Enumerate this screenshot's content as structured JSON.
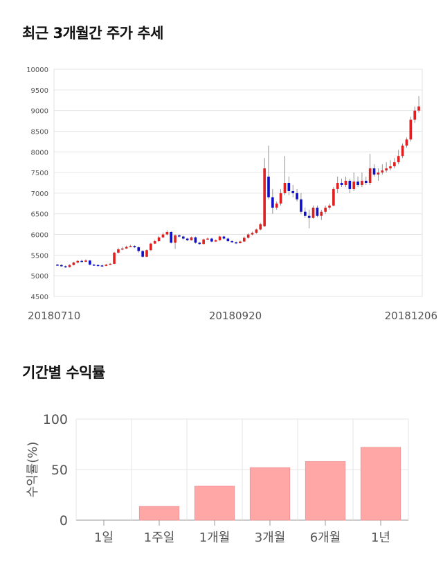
{
  "sections": {
    "price_title": "최근 3개월간 주가 추세",
    "return_title": "기간별 수익률"
  },
  "chart_data": [
    {
      "type": "candlestick",
      "title": "최근 3개월간 주가 추세",
      "ylim": [
        4500,
        10000
      ],
      "yticks": [
        4500,
        5000,
        5500,
        6000,
        6500,
        7000,
        7500,
        8000,
        8500,
        9000,
        9500,
        10000
      ],
      "xtick_labels": [
        "20180710",
        "20180920",
        "20181206"
      ],
      "colors": {
        "up": "#e02020",
        "down": "#1010c8",
        "grid": "#e6e6e6"
      },
      "candles": [
        [
          5270,
          5260,
          5290,
          5240
        ],
        [
          5260,
          5230,
          5280,
          5220
        ],
        [
          5230,
          5210,
          5250,
          5190
        ],
        [
          5210,
          5260,
          5280,
          5200
        ],
        [
          5260,
          5320,
          5340,
          5250
        ],
        [
          5320,
          5360,
          5380,
          5300
        ],
        [
          5360,
          5340,
          5390,
          5320
        ],
        [
          5340,
          5370,
          5400,
          5330
        ],
        [
          5370,
          5270,
          5380,
          5250
        ],
        [
          5270,
          5260,
          5290,
          5240
        ],
        [
          5260,
          5250,
          5280,
          5230
        ],
        [
          5250,
          5240,
          5270,
          5220
        ],
        [
          5240,
          5270,
          5290,
          5230
        ],
        [
          5270,
          5290,
          5310,
          5260
        ],
        [
          5290,
          5560,
          5580,
          5280
        ],
        [
          5560,
          5640,
          5680,
          5540
        ],
        [
          5640,
          5660,
          5700,
          5620
        ],
        [
          5660,
          5700,
          5730,
          5650
        ],
        [
          5700,
          5720,
          5750,
          5690
        ],
        [
          5720,
          5690,
          5740,
          5670
        ],
        [
          5690,
          5600,
          5710,
          5560
        ],
        [
          5600,
          5460,
          5620,
          5440
        ],
        [
          5460,
          5620,
          5640,
          5450
        ],
        [
          5620,
          5780,
          5800,
          5600
        ],
        [
          5780,
          5840,
          5870,
          5770
        ],
        [
          5840,
          5930,
          5960,
          5820
        ],
        [
          5930,
          6000,
          6050,
          5910
        ],
        [
          6000,
          6060,
          6100,
          5980
        ],
        [
          6060,
          5800,
          6080,
          5780
        ],
        [
          5800,
          5980,
          6000,
          5650
        ],
        [
          5980,
          5950,
          6000,
          5930
        ],
        [
          5950,
          5900,
          5970,
          5880
        ],
        [
          5900,
          5860,
          5920,
          5840
        ],
        [
          5860,
          5930,
          5950,
          5850
        ],
        [
          5930,
          5800,
          5950,
          5780
        ],
        [
          5800,
          5770,
          5820,
          5750
        ],
        [
          5770,
          5880,
          5900,
          5760
        ],
        [
          5880,
          5900,
          5930,
          5870
        ],
        [
          5900,
          5830,
          5920,
          5810
        ],
        [
          5830,
          5860,
          5880,
          5820
        ],
        [
          5860,
          5950,
          5970,
          5850
        ],
        [
          5950,
          5900,
          5970,
          5880
        ],
        [
          5900,
          5840,
          5920,
          5820
        ],
        [
          5840,
          5810,
          5860,
          5800
        ],
        [
          5810,
          5790,
          5830,
          5770
        ],
        [
          5790,
          5830,
          5850,
          5780
        ],
        [
          5830,
          5920,
          5950,
          5820
        ],
        [
          5920,
          6000,
          6030,
          5900
        ],
        [
          6000,
          6040,
          6070,
          5980
        ],
        [
          6040,
          6120,
          6140,
          6020
        ],
        [
          6120,
          6250,
          6280,
          6100
        ],
        [
          6200,
          7600,
          7850,
          6180
        ],
        [
          7400,
          6900,
          8150,
          6850
        ],
        [
          6900,
          6650,
          7100,
          6500
        ],
        [
          6650,
          6750,
          6800,
          6600
        ],
        [
          6750,
          7000,
          7100,
          6700
        ],
        [
          7000,
          7250,
          7900,
          6950
        ],
        [
          7250,
          7050,
          7400,
          6950
        ],
        [
          7050,
          7000,
          7200,
          6900
        ],
        [
          7000,
          6850,
          7100,
          6800
        ],
        [
          6850,
          6550,
          7000,
          6500
        ],
        [
          6550,
          6450,
          6650,
          6400
        ],
        [
          6450,
          6400,
          6600,
          6150
        ],
        [
          6400,
          6650,
          6700,
          6380
        ],
        [
          6650,
          6450,
          6700,
          6420
        ],
        [
          6450,
          6550,
          6600,
          6350
        ],
        [
          6550,
          6650,
          6700,
          6500
        ],
        [
          6650,
          6700,
          6750,
          6600
        ],
        [
          6700,
          7100,
          7150,
          6680
        ],
        [
          7100,
          7250,
          7400,
          7000
        ],
        [
          7250,
          7200,
          7350,
          7150
        ],
        [
          7200,
          7300,
          7400,
          7150
        ],
        [
          7300,
          7100,
          7350,
          7000
        ],
        [
          7100,
          7280,
          7500,
          7050
        ],
        [
          7280,
          7200,
          7400,
          7150
        ],
        [
          7200,
          7300,
          7500,
          7150
        ],
        [
          7300,
          7250,
          7400,
          7200
        ],
        [
          7250,
          7600,
          7950,
          7200
        ],
        [
          7600,
          7450,
          7700,
          7400
        ],
        [
          7450,
          7500,
          7600,
          7300
        ],
        [
          7500,
          7550,
          7700,
          7450
        ],
        [
          7550,
          7600,
          7750,
          7500
        ],
        [
          7600,
          7650,
          7800,
          7550
        ],
        [
          7650,
          7750,
          7850,
          7600
        ],
        [
          7750,
          7900,
          8050,
          7700
        ],
        [
          7900,
          8150,
          8200,
          7850
        ],
        [
          8150,
          8300,
          8350,
          8100
        ],
        [
          8300,
          8780,
          8850,
          8250
        ],
        [
          8780,
          9000,
          9100,
          8700
        ],
        [
          9000,
          9100,
          9350,
          8950
        ]
      ]
    },
    {
      "type": "bar",
      "title": "기간별 수익률",
      "ylabel": "수익률(%)",
      "ylim": [
        0,
        100
      ],
      "yticks": [
        0,
        50,
        100
      ],
      "categories": [
        "1일",
        "1주일",
        "1개월",
        "3개월",
        "6개월",
        "1년"
      ],
      "values": [
        0,
        13.6,
        33.6,
        52,
        58,
        72
      ],
      "bar_color": "#ffa6a6"
    }
  ]
}
